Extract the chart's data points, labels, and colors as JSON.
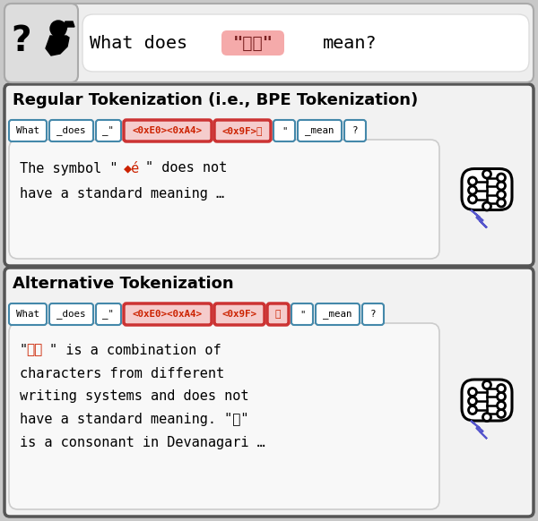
{
  "bg_color": "#c8c8c8",
  "header_bg": "#eeeeee",
  "section_bg": "#f2f2f2",
  "response_bg": "#f8f8f8",
  "token_border_normal": "#4488aa",
  "token_border_highlight": "#cc3333",
  "token_fill_highlight": "#f5cccc",
  "token_fill_normal": "#ffffff",
  "black": "#111111",
  "red_text": "#cc2200",
  "section1_title": "Regular Tokenization (i.e., BPE Tokenization)",
  "section2_title": "Alternative Tokenization",
  "tokens_regular": [
    "What",
    "_does",
    "_\"",
    "<0xE0><0xA4>",
    "<0x9F>能",
    "\"",
    "_mean",
    "?"
  ],
  "tokens_regular_highlight": [
    3,
    4
  ],
  "tokens_alt": [
    "What",
    "_does",
    "_\"",
    "<0xE0><0xA4>",
    "<0x9F>",
    "能",
    "\"",
    "_mean",
    "?"
  ],
  "tokens_alt_highlight": [
    3,
    4,
    5
  ],
  "resp1_text1": "The symbol \"",
  "resp1_corrupt": "◆é",
  "resp1_text2": "\" does not",
  "resp1_line2": "have a standard meaning …",
  "resp2_line1a": "\"",
  "resp2_line1b": "て能",
  "resp2_line1c": "\" is a combination of",
  "resp2_line2": "characters from different",
  "resp2_line3": "writing systems and does not",
  "resp2_line4": "have a standard meaning. \"て\"",
  "resp2_line5": "is a consonant in Devanagari …",
  "header_text_pre": "What does",
  "header_highlight": "\"て能\"",
  "header_text_post": "mean?"
}
